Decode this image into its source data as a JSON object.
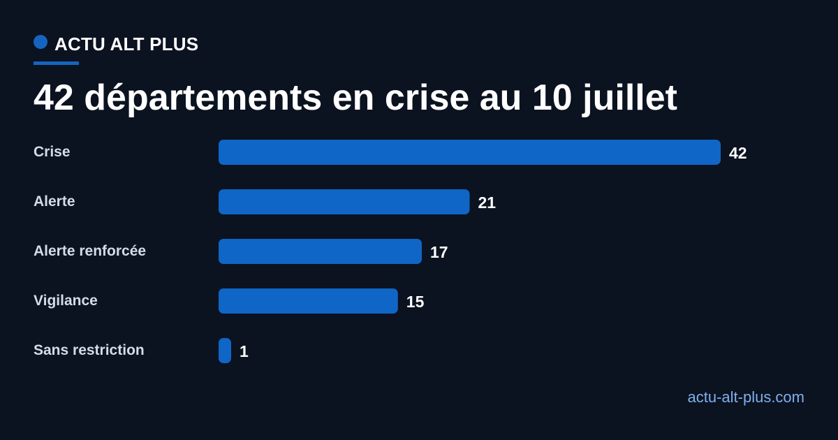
{
  "brand": {
    "name": "ACTU ALT PLUS"
  },
  "headline": "42 départements en crise au 10 juillet",
  "footer": {
    "site": "actu-alt-plus.com"
  },
  "colors": {
    "background": "#0b1220",
    "accent": "#1565c0",
    "bar": "#0f66c6",
    "label": "#d3dceb",
    "value": "#ffffff",
    "link": "#7fb0ea"
  },
  "chart_data": {
    "type": "bar",
    "orientation": "horizontal",
    "categories": [
      "Crise",
      "Alerte",
      "Alerte renforcée",
      "Vigilance",
      "Sans restriction"
    ],
    "values": [
      42,
      21,
      17,
      15,
      1
    ],
    "xlim": [
      0,
      42
    ],
    "grid": false,
    "legend": "none"
  }
}
